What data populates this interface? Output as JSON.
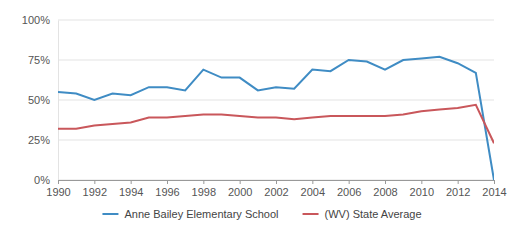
{
  "chart_data": {
    "type": "line",
    "x": [
      1990,
      1991,
      1992,
      1993,
      1994,
      1995,
      1996,
      1997,
      1998,
      1999,
      2000,
      2001,
      2002,
      2003,
      2004,
      2005,
      2006,
      2007,
      2008,
      2009,
      2010,
      2011,
      2012,
      2013,
      2014
    ],
    "series": [
      {
        "name": "Anne Bailey Elementary School",
        "color": "#3f8cc4",
        "values": [
          55,
          54,
          50,
          54,
          53,
          58,
          58,
          56,
          69,
          64,
          64,
          56,
          58,
          57,
          69,
          68,
          75,
          74,
          69,
          75,
          76,
          77,
          73,
          67,
          0
        ]
      },
      {
        "name": "(WV) State Average",
        "color": "#c9575b",
        "values": [
          32,
          32,
          34,
          35,
          36,
          39,
          39,
          40,
          41,
          41,
          40,
          39,
          39,
          38,
          39,
          40,
          40,
          40,
          40,
          41,
          43,
          44,
          45,
          47,
          23
        ]
      }
    ],
    "xlim": [
      1990,
      2014
    ],
    "xticks": [
      1990,
      1992,
      1994,
      1996,
      1998,
      2000,
      2002,
      2004,
      2006,
      2008,
      2010,
      2012,
      2014
    ],
    "ylim": [
      0,
      100
    ],
    "yticks": [
      {
        "value": 0,
        "label": "0%"
      },
      {
        "value": 25,
        "label": "25%"
      },
      {
        "value": 50,
        "label": "50%"
      },
      {
        "value": 75,
        "label": "75%"
      },
      {
        "value": 100,
        "label": "100%"
      }
    ],
    "grid": true,
    "legend": "bottom"
  }
}
